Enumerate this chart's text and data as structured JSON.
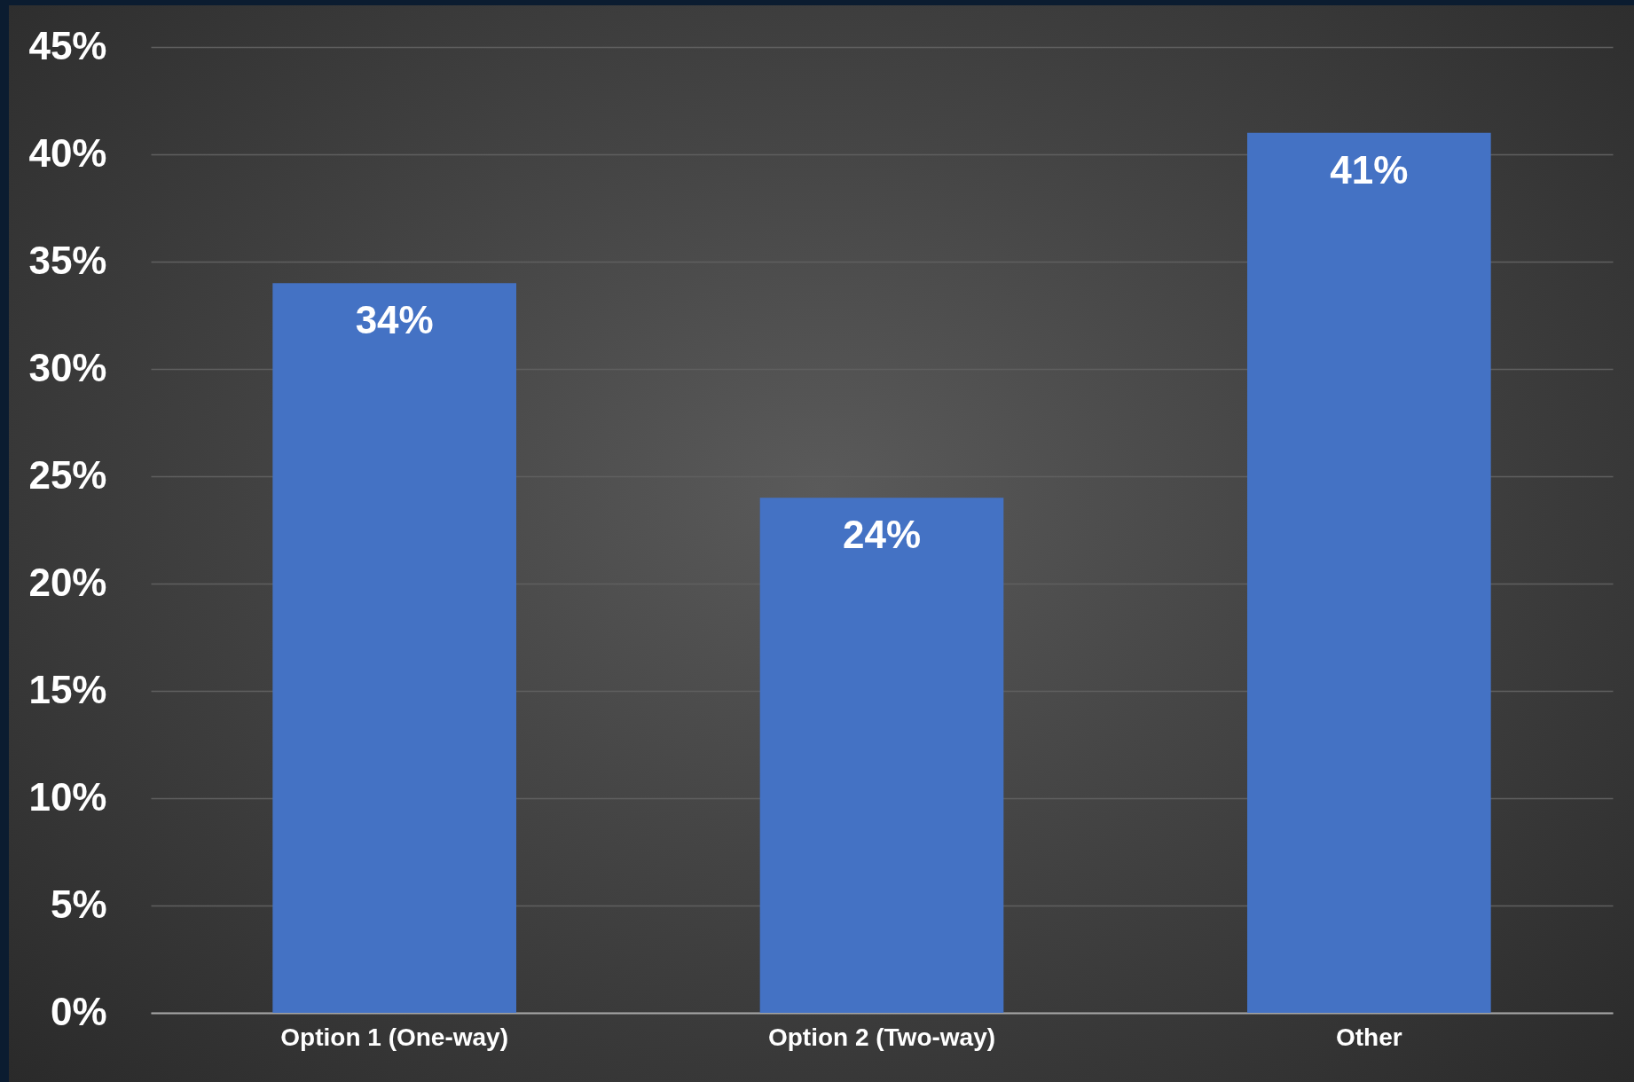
{
  "chart_data": {
    "type": "bar",
    "categories": [
      "Option 1 (One-way)",
      "Option 2 (Two-way)",
      "Other"
    ],
    "values": [
      34,
      24,
      41
    ],
    "color": "#4472c4",
    "value_labels": [
      "34%",
      "24%",
      "41%"
    ],
    "ylim": [
      0,
      45
    ],
    "yticks": [
      {
        "value": 0,
        "label": "0%"
      },
      {
        "value": 5,
        "label": "5%"
      },
      {
        "value": 10,
        "label": "10%"
      },
      {
        "value": 15,
        "label": "15%"
      },
      {
        "value": 20,
        "label": "20%"
      },
      {
        "value": 25,
        "label": "25%"
      },
      {
        "value": 30,
        "label": "30%"
      },
      {
        "value": 35,
        "label": "35%"
      },
      {
        "value": 40,
        "label": "40%"
      },
      {
        "value": 45,
        "label": "45%"
      }
    ],
    "grid": "y"
  }
}
